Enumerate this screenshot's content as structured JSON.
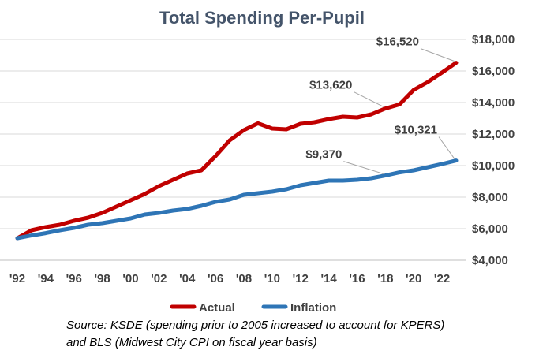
{
  "chart_data": {
    "type": "line",
    "title": "Total Spending Per-Pupil",
    "x": [
      1992,
      1993,
      1994,
      1995,
      1996,
      1997,
      1998,
      1999,
      2000,
      2001,
      2002,
      2003,
      2004,
      2005,
      2006,
      2007,
      2008,
      2009,
      2010,
      2011,
      2012,
      2013,
      2014,
      2015,
      2016,
      2017,
      2018,
      2019,
      2020,
      2021,
      2022,
      2023
    ],
    "x_tick_labels": [
      "'92",
      "'94",
      "'96",
      "'98",
      "'00",
      "'02",
      "'04",
      "'06",
      "'08",
      "'10",
      "'12",
      "'14",
      "'16",
      "'18",
      "'20",
      "'22"
    ],
    "x_tick_values": [
      1992,
      1994,
      1996,
      1998,
      2000,
      2002,
      2004,
      2006,
      2008,
      2010,
      2012,
      2014,
      2016,
      2018,
      2020,
      2022
    ],
    "xlim": [
      1992,
      2023
    ],
    "ylim": [
      4000,
      18000
    ],
    "y_ticks": [
      4000,
      6000,
      8000,
      10000,
      12000,
      14000,
      16000,
      18000
    ],
    "y_tick_labels": [
      "$4,000",
      "$6,000",
      "$8,000",
      "$10,000",
      "$12,000",
      "$14,000",
      "$16,000",
      "$18,000"
    ],
    "y_axis_side": "right",
    "grid": true,
    "legend_position": "bottom",
    "series": [
      {
        "name": "Actual",
        "color": "#c00000",
        "values": [
          5400,
          5900,
          6100,
          6250,
          6500,
          6700,
          7000,
          7400,
          7800,
          8200,
          8700,
          9100,
          9500,
          9700,
          10600,
          11600,
          12250,
          12680,
          12350,
          12300,
          12650,
          12750,
          12950,
          13100,
          13050,
          13250,
          13620,
          13880,
          14800,
          15300,
          15900,
          16520
        ]
      },
      {
        "name": "Inflation",
        "color": "#2e75b6",
        "values": [
          5400,
          5570,
          5720,
          5900,
          6050,
          6250,
          6350,
          6500,
          6650,
          6900,
          7000,
          7150,
          7250,
          7450,
          7700,
          7850,
          8150,
          8250,
          8350,
          8500,
          8750,
          8900,
          9050,
          9050,
          9100,
          9200,
          9370,
          9570,
          9700,
          9900,
          10100,
          10321
        ]
      }
    ],
    "annotations": [
      {
        "text": "$16,520",
        "series": "Actual",
        "x": 2023
      },
      {
        "text": "$13,620",
        "series": "Actual",
        "x": 2018
      },
      {
        "text": "$10,321",
        "series": "Inflation",
        "x": 2023
      },
      {
        "text": "$9,370",
        "series": "Inflation",
        "x": 2018
      }
    ]
  },
  "source_note": {
    "line1": "Source: KSDE (spending prior to 2005 increased to account for KPERS)",
    "line2": "and BLS (Midwest City CPI on fiscal year basis)"
  }
}
